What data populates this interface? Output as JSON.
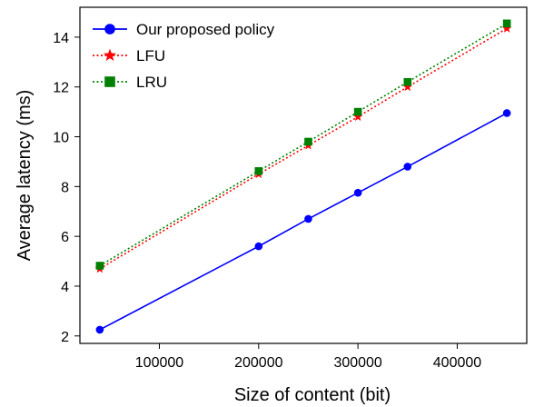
{
  "chart_data": {
    "type": "line",
    "xlabel": "Size of content (bit)",
    "ylabel": "Average latency (ms)",
    "xlim": [
      20000,
      470000
    ],
    "ylim": [
      1.7,
      15.2
    ],
    "xticks": [
      100000,
      200000,
      300000,
      400000
    ],
    "yticks": [
      2,
      4,
      6,
      8,
      10,
      12,
      14
    ],
    "grid": false,
    "legend": "top-left",
    "series": [
      {
        "name": "Our proposed policy",
        "color": "#0000ff",
        "line_style": "solid",
        "marker": "circle",
        "x": [
          40000,
          200000,
          250000,
          300000,
          350000,
          450000
        ],
        "y": [
          2.25,
          5.6,
          6.7,
          7.75,
          8.8,
          10.95
        ]
      },
      {
        "name": "LFU",
        "color": "#ff0000",
        "line_style": "dotted",
        "marker": "star",
        "x": [
          40000,
          200000,
          250000,
          300000,
          350000,
          450000
        ],
        "y": [
          4.7,
          8.5,
          9.65,
          10.8,
          12.0,
          14.35
        ]
      },
      {
        "name": "LRU",
        "color": "#008000",
        "line_style": "dotted",
        "marker": "square",
        "x": [
          40000,
          200000,
          250000,
          300000,
          350000,
          450000
        ],
        "y": [
          4.82,
          8.62,
          9.8,
          11.0,
          12.2,
          14.55
        ]
      }
    ]
  }
}
